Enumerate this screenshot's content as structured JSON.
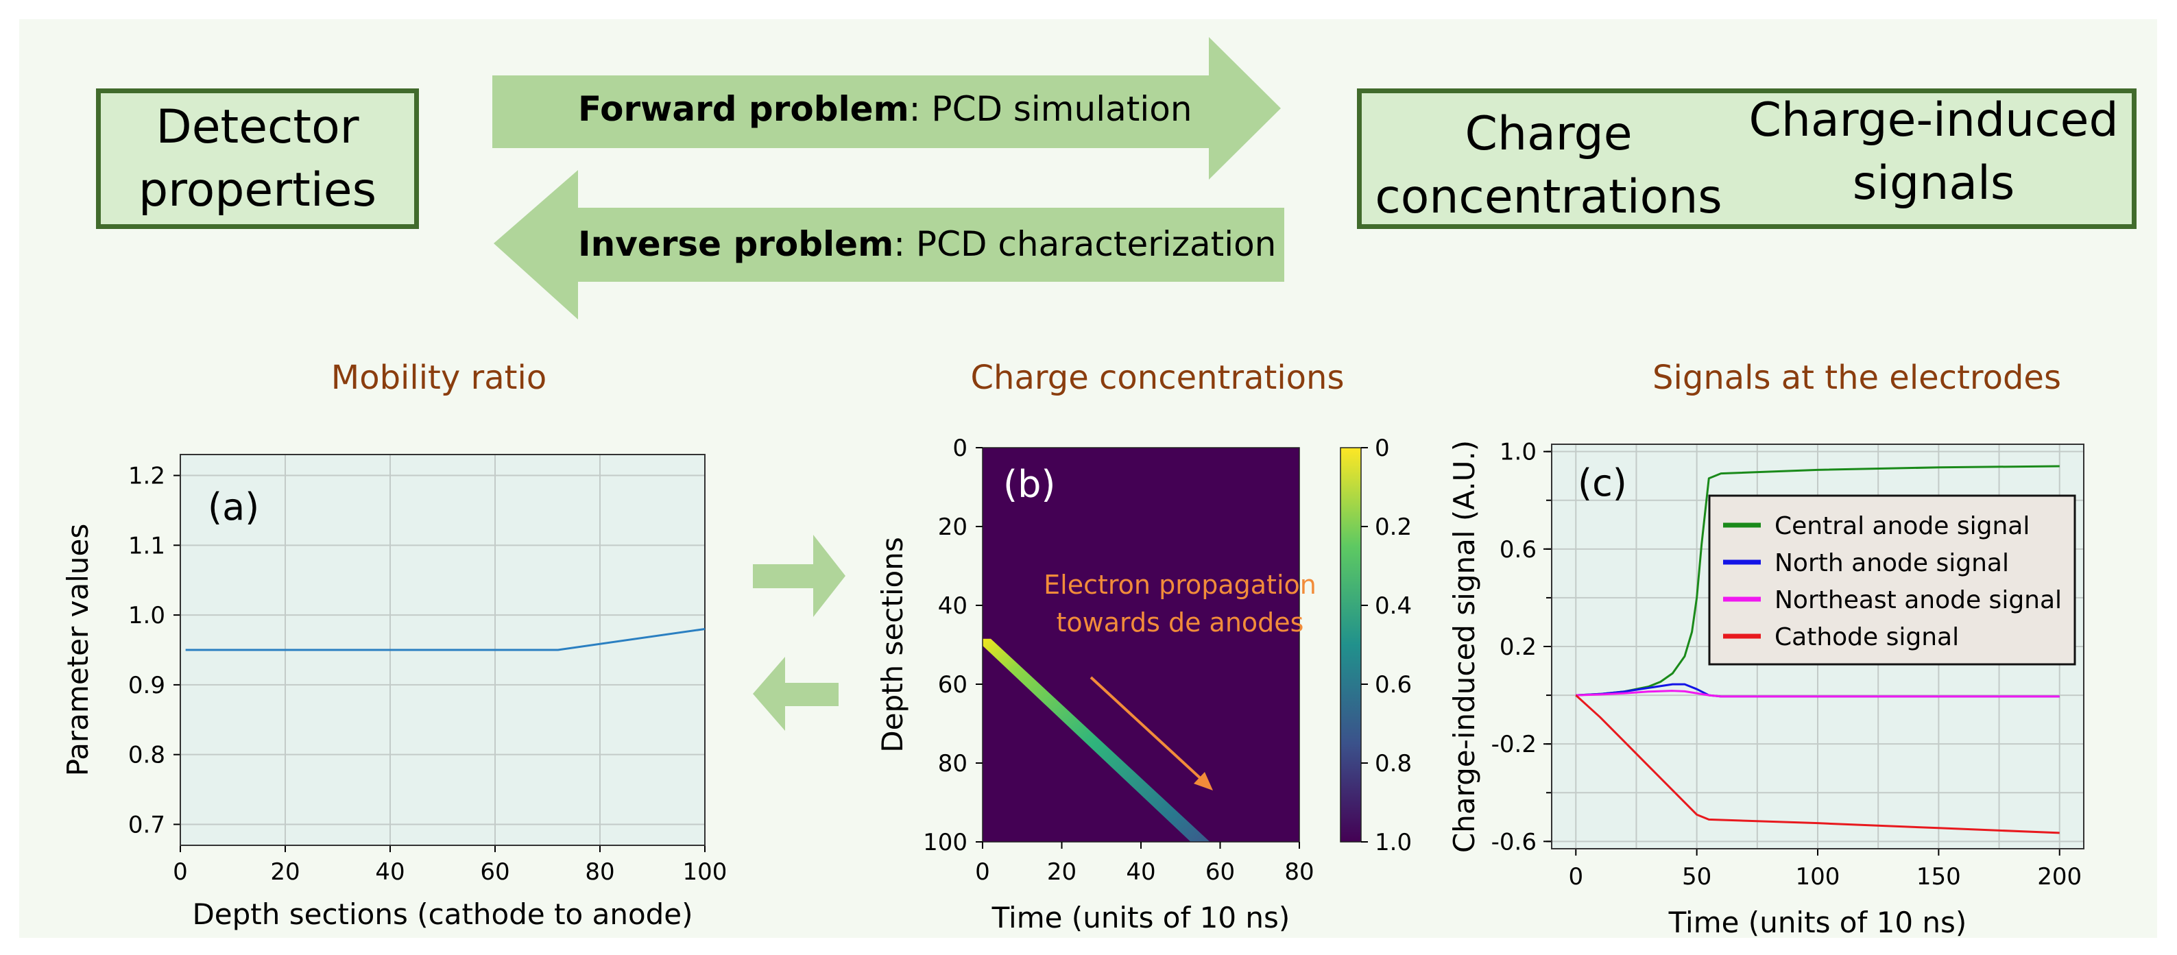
{
  "top": {
    "left_box": {
      "line1": "Detector",
      "line2": "properties"
    },
    "right_box": {
      "col1_line1": "Charge",
      "col1_line2": "concentrations",
      "col2_line1": "Charge-induced",
      "col2_line2": "signals"
    },
    "forward_arrow": {
      "bold": "Forward problem",
      "rest": ": PCD simulation"
    },
    "inverse_arrow": {
      "bold": "Inverse problem",
      "rest": ": PCD characterization"
    }
  },
  "colors": {
    "background": "#f4f9f1",
    "box_fill": "#d8edce",
    "box_border": "#416b2c",
    "arrow_fill": "#b0d59a",
    "title_color": "#8a3d0e",
    "plot_bg": "#e6f2ee",
    "heatmap_bg": "#440154",
    "annotation": "#f28c3a"
  },
  "chart_data": [
    {
      "panel_title": "Mobility ratio",
      "type": "line",
      "label": "(a)",
      "xlabel": "Depth sections (cathode to anode)",
      "ylabel": "Parameter values",
      "xlim": [
        0,
        100
      ],
      "ylim": [
        0.67,
        1.23
      ],
      "xticks": [
        0,
        20,
        40,
        60,
        80,
        100
      ],
      "yticks": [
        0.7,
        0.8,
        0.9,
        1.0,
        1.1,
        1.2
      ],
      "ytick_labels": [
        "0.7",
        "0.8",
        "0.9",
        "1.0",
        "1.1",
        "1.2"
      ],
      "grid": true,
      "series": [
        {
          "name": "mobility ratio",
          "color": "#2a7fc1",
          "x": [
            1,
            72,
            100
          ],
          "y": [
            0.95,
            0.95,
            0.98
          ]
        }
      ]
    },
    {
      "panel_title": "Charge concentrations",
      "type": "heatmap",
      "label": "(b)",
      "xlabel": "Time (units of 10 ns)",
      "ylabel": "Depth sections",
      "xlim": [
        0,
        80
      ],
      "ylim": [
        100,
        0
      ],
      "xticks": [
        0,
        20,
        40,
        60,
        80
      ],
      "yticks": [
        0,
        20,
        40,
        60,
        80,
        100
      ],
      "colorbar": {
        "ticks": [
          "0",
          "0.2",
          "0.4",
          "0.6",
          "0.8",
          "1.0"
        ],
        "values": [
          0,
          0.2,
          0.4,
          0.6,
          0.8,
          1.0
        ]
      },
      "band": {
        "start": [
          0,
          49
        ],
        "end": [
          55,
          100
        ]
      },
      "annotation": {
        "line1": "Electron propagation",
        "line2": "towards de anodes"
      }
    },
    {
      "panel_title": "Signals at the electrodes",
      "type": "line",
      "label": "(c)",
      "xlabel": "Time (units of 10 ns)",
      "ylabel": "Charge-induced signal (A.U.)",
      "xlim": [
        -10,
        210
      ],
      "ylim": [
        -0.63,
        1.03
      ],
      "xticks": [
        0,
        50,
        100,
        150,
        200
      ],
      "yticks": [
        1.0,
        0.6,
        0.2,
        -0.2,
        -0.6
      ],
      "ytick_labels": [
        "1.0",
        "0.6",
        "0.2",
        "-0.2",
        "-0.6"
      ],
      "grid": true,
      "legend_position": "upper-right",
      "series": [
        {
          "name": "Central anode signal",
          "color": "#1a8a1a",
          "x": [
            0,
            10,
            20,
            30,
            35,
            40,
            45,
            48,
            50,
            52,
            55,
            60,
            100,
            150,
            200
          ],
          "y": [
            0,
            0.005,
            0.015,
            0.035,
            0.055,
            0.09,
            0.16,
            0.26,
            0.4,
            0.62,
            0.89,
            0.91,
            0.925,
            0.935,
            0.94
          ]
        },
        {
          "name": "North anode signal",
          "color": "#1414e6",
          "x": [
            0,
            10,
            20,
            30,
            40,
            45,
            50,
            55,
            60,
            100,
            150,
            200
          ],
          "y": [
            0,
            0.005,
            0.015,
            0.03,
            0.045,
            0.045,
            0.025,
            0.0,
            -0.005,
            -0.005,
            -0.005,
            -0.005
          ]
        },
        {
          "name": "Northeast anode signal",
          "color": "#f018f0",
          "x": [
            0,
            10,
            20,
            30,
            40,
            45,
            50,
            55,
            60,
            100,
            150,
            200
          ],
          "y": [
            0,
            0.003,
            0.008,
            0.015,
            0.018,
            0.016,
            0.008,
            0.0,
            -0.005,
            -0.005,
            -0.005,
            -0.005
          ]
        },
        {
          "name": "Cathode signal",
          "color": "#e8191e",
          "x": [
            0,
            10,
            20,
            30,
            40,
            50,
            55,
            100,
            150,
            200
          ],
          "y": [
            0,
            -0.09,
            -0.19,
            -0.29,
            -0.39,
            -0.49,
            -0.51,
            -0.525,
            -0.545,
            -0.565
          ]
        }
      ]
    }
  ]
}
